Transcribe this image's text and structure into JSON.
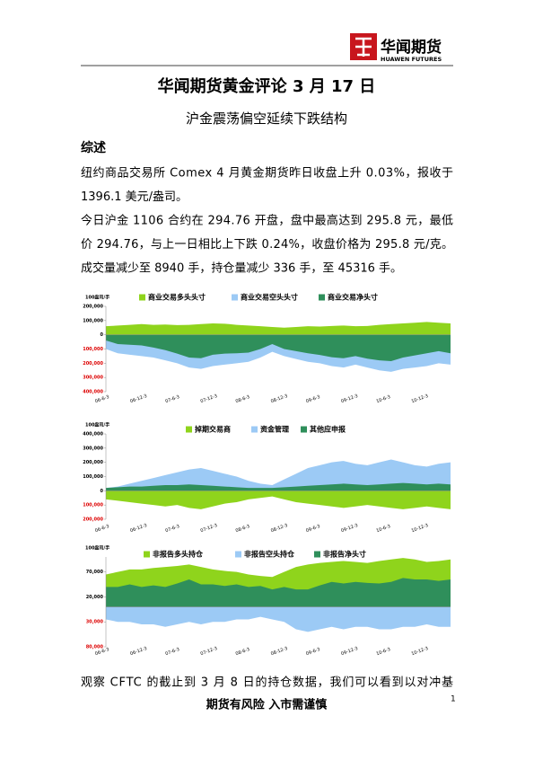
{
  "header": {
    "logo_cn": "华闻期货",
    "logo_en": "HUAWEN FUTURES"
  },
  "title": "华闻期货黄金评论 3 月 17 日",
  "subtitle": "沪金震荡偏空延续下跌结构",
  "section": "综述",
  "paragraphs": [
    [
      "纽约商品交易所 Comex 4 月黄金期货昨日收盘上升 0.03%，报收于",
      "1396.1 美元/盎司。"
    ],
    [
      "今日沪金 1106 合约在 294.76 开盘，盘中最高达到 295.8 元，最低",
      "价 294.76，与上一日相比上下跌 0.24%，收盘价格为 295.8 元/克。",
      "成交量减少至 8940 手，持仓量减少 336 手，至 45316 手。"
    ]
  ],
  "charts": [
    {
      "type": "area",
      "unit": "100盎司/手",
      "ylim": [
        -400000,
        200000
      ],
      "yticks": [
        {
          "value": 200000,
          "label": "200,000"
        },
        {
          "value": 100000,
          "label": "100,000"
        },
        0,
        {
          "value": -100000,
          "label": "100,000"
        },
        {
          "value": -200000,
          "label": "200,000"
        },
        {
          "value": -300000,
          "label": "300,000"
        },
        {
          "value": -400000,
          "label": "400,000"
        }
      ],
      "xlabels": [
        "06-6-3",
        "06-12-3",
        "07-6-3",
        "07-12-3",
        "08-6-3",
        "08-12-3",
        "09-6-3",
        "09-12-3",
        "10-6-3",
        "10-12-3"
      ],
      "series": [
        {
          "name": "商业交易多头头寸",
          "color": "#8fd41c",
          "values": [
            60000,
            65000,
            70000,
            75000,
            70000,
            72000,
            68000,
            70000,
            75000,
            80000,
            78000,
            70000,
            65000,
            60000,
            55000,
            50000,
            55000,
            60000,
            58000,
            62000,
            65000,
            60000,
            62000,
            70000,
            75000,
            80000,
            85000,
            90000,
            85000,
            80000
          ]
        },
        {
          "name": "商业交易空头头寸",
          "color": "#9ccaf5",
          "values": [
            -100000,
            -130000,
            -140000,
            -150000,
            -160000,
            -180000,
            -200000,
            -230000,
            -240000,
            -220000,
            -210000,
            -200000,
            -190000,
            -160000,
            -120000,
            -150000,
            -170000,
            -190000,
            -200000,
            -220000,
            -230000,
            -210000,
            -230000,
            -250000,
            -260000,
            -240000,
            -230000,
            -220000,
            -200000,
            -210000
          ]
        },
        {
          "name": "商业交易净头寸",
          "color": "#2f8f5b",
          "values": [
            -40000,
            -65000,
            -70000,
            -75000,
            -90000,
            -108000,
            -132000,
            -160000,
            -165000,
            -140000,
            -132000,
            -130000,
            -125000,
            -100000,
            -65000,
            -100000,
            -115000,
            -130000,
            -142000,
            -158000,
            -165000,
            -150000,
            -168000,
            -180000,
            -185000,
            -160000,
            -145000,
            -130000,
            -115000,
            -130000
          ]
        }
      ]
    },
    {
      "type": "area",
      "unit": "100盎司/手",
      "ylim": [
        -200000,
        400000
      ],
      "yticks": [
        {
          "value": 400000,
          "label": "400,000"
        },
        {
          "value": 300000,
          "label": "300,000"
        },
        {
          "value": 200000,
          "label": "200,000"
        },
        {
          "value": 100000,
          "label": "100,000"
        },
        0,
        {
          "value": -100000,
          "label": "100,000"
        },
        {
          "value": -200000,
          "label": "200,000"
        }
      ],
      "xlabels": [
        "06-6-3",
        "06-12-3",
        "07-6-3",
        "07-12-3",
        "08-6-3",
        "08-12-3",
        "09-6-3",
        "09-12-3",
        "10-6-3",
        "10-12-3"
      ],
      "series": [
        {
          "name": "掉期交易商",
          "color": "#8fd41c",
          "values": [
            -60000,
            -70000,
            -80000,
            -90000,
            -100000,
            -110000,
            -100000,
            -120000,
            -130000,
            -110000,
            -90000,
            -80000,
            -60000,
            -50000,
            -40000,
            -60000,
            -80000,
            -90000,
            -100000,
            -110000,
            -120000,
            -110000,
            -100000,
            -110000,
            -120000,
            -130000,
            -120000,
            -110000,
            -120000,
            -130000
          ]
        },
        {
          "name": "资金管理",
          "color": "#9ccaf5",
          "values": [
            20000,
            30000,
            50000,
            70000,
            90000,
            110000,
            130000,
            150000,
            160000,
            140000,
            120000,
            100000,
            70000,
            50000,
            40000,
            80000,
            120000,
            160000,
            180000,
            200000,
            210000,
            190000,
            180000,
            200000,
            220000,
            200000,
            180000,
            170000,
            190000,
            200000
          ]
        },
        {
          "name": "其他应申报",
          "color": "#2f8f5b",
          "values": [
            20000,
            25000,
            30000,
            30000,
            35000,
            40000,
            40000,
            45000,
            40000,
            35000,
            30000,
            25000,
            20000,
            20000,
            20000,
            25000,
            30000,
            35000,
            40000,
            45000,
            50000,
            45000,
            40000,
            45000,
            50000,
            55000,
            50000,
            45000,
            50000,
            45000
          ]
        }
      ]
    },
    {
      "type": "area",
      "unit": "100盎司/手",
      "ylim": [
        -80000,
        100000
      ],
      "yticks": [
        {
          "value": 70000,
          "label": "70,000"
        },
        {
          "value": 20000,
          "label": "20,000"
        },
        {
          "value": -30000,
          "label": "30,000"
        },
        {
          "value": -80000,
          "label": "80,000"
        }
      ],
      "xlabels": [
        "06-6-3",
        "06-12-3",
        "07-6-3",
        "07-12-3",
        "08-6-3",
        "08-12-3",
        "09-6-3",
        "09-12-3",
        "10-6-3",
        "10-12-3"
      ],
      "series": [
        {
          "name": "非报告多头持仓",
          "color": "#8fd41c",
          "values": [
            65000,
            70000,
            75000,
            75000,
            78000,
            80000,
            82000,
            85000,
            80000,
            75000,
            72000,
            70000,
            65000,
            62000,
            60000,
            70000,
            80000,
            85000,
            88000,
            90000,
            92000,
            90000,
            88000,
            92000,
            95000,
            98000,
            95000,
            90000,
            92000,
            95000
          ]
        },
        {
          "name": "非报告空头持仓",
          "color": "#9ccaf5",
          "values": [
            -25000,
            -30000,
            -30000,
            -35000,
            -35000,
            -40000,
            -35000,
            -30000,
            -35000,
            -30000,
            -30000,
            -25000,
            -25000,
            -20000,
            -25000,
            -30000,
            -45000,
            -50000,
            -45000,
            -40000,
            -45000,
            -40000,
            -40000,
            -45000,
            -45000,
            -40000,
            -40000,
            -35000,
            -40000,
            -40000
          ]
        },
        {
          "name": "非报告净头寸",
          "color": "#2f8f5b",
          "values": [
            40000,
            40000,
            45000,
            40000,
            43000,
            40000,
            47000,
            55000,
            45000,
            45000,
            42000,
            45000,
            40000,
            42000,
            35000,
            40000,
            35000,
            35000,
            43000,
            50000,
            47000,
            50000,
            48000,
            47000,
            50000,
            58000,
            55000,
            55000,
            52000,
            55000
          ]
        }
      ]
    }
  ],
  "closing": "观察 CFTC 的截止到 3 月 8 日的持仓数据，我们可以看到以对冲基",
  "footer": "期货有风险  入市需谨慎",
  "page": "1"
}
